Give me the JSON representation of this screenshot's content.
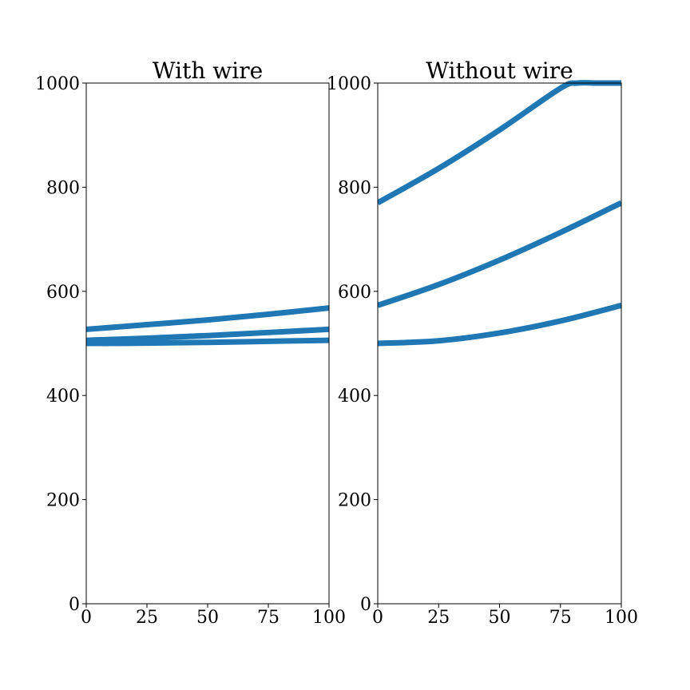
{
  "chart_data": [
    {
      "type": "line",
      "title": "With wire",
      "xlabel": "",
      "ylabel": "",
      "xlim": [
        0,
        100
      ],
      "ylim": [
        0,
        1000
      ],
      "xticks": [
        "0",
        "25",
        "50",
        "75",
        "100"
      ],
      "yticks": [
        "0",
        "200",
        "400",
        "600",
        "800",
        "1000"
      ],
      "grid": false,
      "color": "#1f77b4",
      "series": [
        {
          "x": [
            0,
            25,
            50,
            75,
            100
          ],
          "values": [
            500,
            500.5,
            502,
            504,
            506
          ]
        },
        {
          "x": [
            0,
            25,
            50,
            75,
            100
          ],
          "values": [
            506,
            510,
            515,
            521,
            527
          ]
        },
        {
          "x": [
            0,
            25,
            50,
            75,
            100
          ],
          "values": [
            527,
            536,
            545,
            556,
            568
          ]
        }
      ]
    },
    {
      "type": "line",
      "title": "Without wire",
      "xlabel": "",
      "ylabel": "",
      "xlim": [
        0,
        100
      ],
      "ylim": [
        0,
        1000
      ],
      "xticks": [
        "0",
        "25",
        "50",
        "75",
        "100"
      ],
      "yticks": [
        "0",
        "200",
        "400",
        "600",
        "800",
        "1000"
      ],
      "grid": false,
      "color": "#1f77b4",
      "series": [
        {
          "x": [
            0,
            25,
            50,
            75,
            100
          ],
          "values": [
            500,
            505,
            520,
            543,
            573
          ]
        },
        {
          "x": [
            0,
            25,
            50,
            75,
            100
          ],
          "values": [
            573,
            613,
            660,
            713,
            770
          ]
        },
        {
          "x": [
            0,
            25,
            50,
            75,
            82,
            90,
            100
          ],
          "values": [
            770,
            836,
            910,
            990,
            1000,
            1000,
            1000
          ]
        }
      ]
    }
  ]
}
